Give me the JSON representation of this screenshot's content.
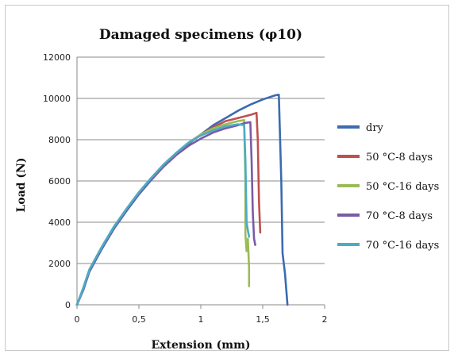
{
  "chart_data": {
    "type": "line",
    "title": "Damaged specimens (φ10)",
    "xlabel": "Extension (mm)",
    "ylabel": "Load (N)",
    "xlim": [
      0,
      2
    ],
    "ylim": [
      0,
      12000
    ],
    "x_ticks": [
      "0",
      "0,5",
      "1",
      "1,5",
      "2"
    ],
    "y_ticks": [
      "0",
      "2000",
      "4000",
      "6000",
      "8000",
      "10000",
      "12000"
    ],
    "grid": "horizontal",
    "legend_position": "right",
    "series": [
      {
        "name": "dry",
        "color": "#3c6bb0",
        "points": [
          [
            0,
            0
          ],
          [
            0.05,
            700
          ],
          [
            0.1,
            1600
          ],
          [
            0.2,
            2700
          ],
          [
            0.3,
            3700
          ],
          [
            0.4,
            4550
          ],
          [
            0.5,
            5350
          ],
          [
            0.6,
            6050
          ],
          [
            0.7,
            6700
          ],
          [
            0.8,
            7250
          ],
          [
            0.9,
            7800
          ],
          [
            1.0,
            8250
          ],
          [
            1.1,
            8700
          ],
          [
            1.2,
            9050
          ],
          [
            1.3,
            9400
          ],
          [
            1.4,
            9700
          ],
          [
            1.5,
            9950
          ],
          [
            1.6,
            10150
          ],
          [
            1.63,
            10180
          ],
          [
            1.65,
            6000
          ],
          [
            1.66,
            2500
          ],
          [
            1.68,
            1500
          ],
          [
            1.7,
            0
          ]
        ]
      },
      {
        "name": "50 °C-8 days",
        "color": "#c0504d",
        "points": [
          [
            0,
            0
          ],
          [
            0.05,
            800
          ],
          [
            0.1,
            1700
          ],
          [
            0.2,
            2800
          ],
          [
            0.3,
            3800
          ],
          [
            0.4,
            4650
          ],
          [
            0.5,
            5450
          ],
          [
            0.6,
            6150
          ],
          [
            0.7,
            6800
          ],
          [
            0.8,
            7350
          ],
          [
            0.9,
            7850
          ],
          [
            1.0,
            8250
          ],
          [
            1.1,
            8600
          ],
          [
            1.2,
            8900
          ],
          [
            1.3,
            9050
          ],
          [
            1.4,
            9200
          ],
          [
            1.45,
            9300
          ],
          [
            1.46,
            8000
          ],
          [
            1.47,
            5000
          ],
          [
            1.48,
            3500
          ]
        ]
      },
      {
        "name": "50 °C-16 days",
        "color": "#9bbb59",
        "points": [
          [
            0,
            0
          ],
          [
            0.05,
            800
          ],
          [
            0.1,
            1700
          ],
          [
            0.2,
            2800
          ],
          [
            0.3,
            3800
          ],
          [
            0.4,
            4650
          ],
          [
            0.5,
            5450
          ],
          [
            0.6,
            6150
          ],
          [
            0.7,
            6800
          ],
          [
            0.8,
            7350
          ],
          [
            0.9,
            7850
          ],
          [
            1.0,
            8250
          ],
          [
            1.1,
            8550
          ],
          [
            1.2,
            8750
          ],
          [
            1.3,
            8900
          ],
          [
            1.35,
            8950
          ],
          [
            1.36,
            6000
          ],
          [
            1.36,
            3400
          ],
          [
            1.37,
            2600
          ],
          [
            1.38,
            3200
          ],
          [
            1.39,
            1800
          ],
          [
            1.39,
            900
          ]
        ]
      },
      {
        "name": "70 °C-8 days",
        "color": "#7a5ba6",
        "points": [
          [
            0,
            0
          ],
          [
            0.05,
            750
          ],
          [
            0.1,
            1650
          ],
          [
            0.2,
            2750
          ],
          [
            0.3,
            3750
          ],
          [
            0.4,
            4600
          ],
          [
            0.5,
            5400
          ],
          [
            0.6,
            6100
          ],
          [
            0.7,
            6700
          ],
          [
            0.8,
            7250
          ],
          [
            0.9,
            7700
          ],
          [
            1.0,
            8050
          ],
          [
            1.1,
            8350
          ],
          [
            1.2,
            8550
          ],
          [
            1.3,
            8700
          ],
          [
            1.35,
            8800
          ],
          [
            1.4,
            8850
          ],
          [
            1.41,
            7000
          ],
          [
            1.42,
            4500
          ],
          [
            1.43,
            3200
          ],
          [
            1.44,
            2900
          ]
        ]
      },
      {
        "name": "70 °C-16 days",
        "color": "#4bacc6",
        "points": [
          [
            0,
            0
          ],
          [
            0.05,
            800
          ],
          [
            0.1,
            1700
          ],
          [
            0.2,
            2800
          ],
          [
            0.3,
            3800
          ],
          [
            0.4,
            4650
          ],
          [
            0.5,
            5450
          ],
          [
            0.6,
            6150
          ],
          [
            0.7,
            6800
          ],
          [
            0.8,
            7350
          ],
          [
            0.9,
            7850
          ],
          [
            1.0,
            8200
          ],
          [
            1.1,
            8450
          ],
          [
            1.2,
            8650
          ],
          [
            1.3,
            8750
          ],
          [
            1.35,
            8700
          ],
          [
            1.36,
            7000
          ],
          [
            1.37,
            4000
          ],
          [
            1.38,
            3600
          ],
          [
            1.39,
            3300
          ]
        ]
      }
    ]
  }
}
